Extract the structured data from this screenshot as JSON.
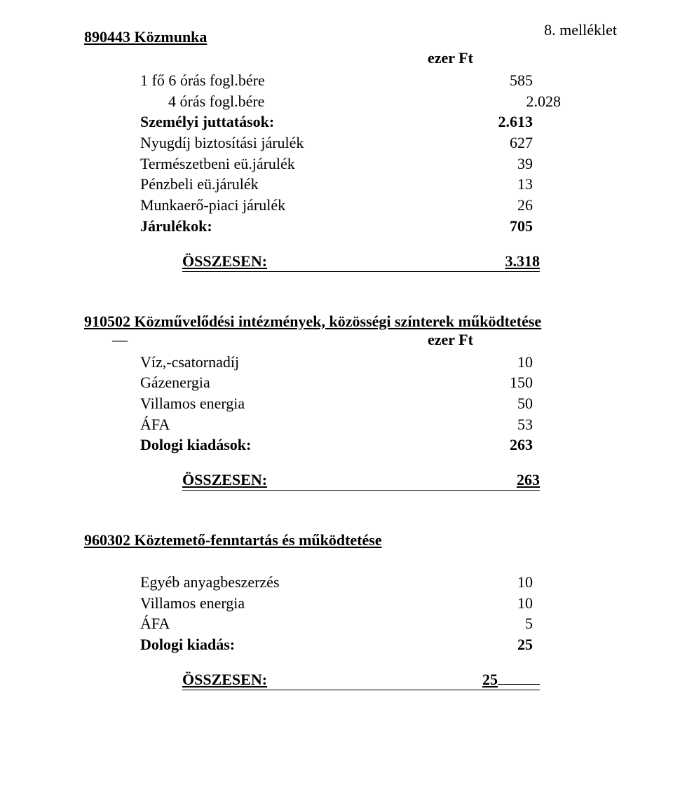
{
  "page": {
    "attachment_label": "8. melléklet"
  },
  "section1": {
    "title": "890443  Közmunka",
    "currency_label": "ezer Ft",
    "rows": [
      {
        "label": "1 fő 6 órás fogl.bére",
        "value": "585"
      },
      {
        "label": "4 órás fogl.bére",
        "value": "2.028"
      },
      {
        "label": "Személyi juttatások:",
        "value": "2.613"
      },
      {
        "label": "Nyugdíj biztosítási járulék",
        "value": "627"
      },
      {
        "label": "Természetbeni eü.járulék",
        "value": "39"
      },
      {
        "label": "Pénzbeli eü.járulék",
        "value": "13"
      },
      {
        "label": "Munkaerő-piaci járulék",
        "value": "26"
      },
      {
        "label": "Járulékok:",
        "value": "705"
      }
    ],
    "total": {
      "label": "ÖSSZESEN:",
      "value": "3.318"
    }
  },
  "section2": {
    "title": "910502 Közművelődési intézmények, közösségi színterek működtetése",
    "currency_label": "ezer Ft",
    "rows": [
      {
        "label": "Víz,-csatornadíj",
        "value": "10"
      },
      {
        "label": "Gázenergia",
        "value": "150"
      },
      {
        "label": "Villamos energia",
        "value": "50"
      },
      {
        "label": "ÁFA",
        "value": "53"
      },
      {
        "label": "Dologi kiadások:",
        "value": "263"
      }
    ],
    "total": {
      "label": "ÖSSZESEN:",
      "value": "263"
    }
  },
  "section3": {
    "title": "960302 Köztemető-fenntartás és működtetése",
    "rows": [
      {
        "label": "Egyéb anyagbeszerzés",
        "value": "10"
      },
      {
        "label": "Villamos energia",
        "value": "10"
      },
      {
        "label": "ÁFA",
        "value": "5"
      },
      {
        "label": "Dologi kiadás:",
        "value": "25"
      }
    ],
    "total": {
      "label": "ÖSSZESEN:",
      "value": "25"
    }
  },
  "style": {
    "font_family": "Times New Roman",
    "base_font_size_pt": 16,
    "text_color": "#000000",
    "background_color": "#ffffff",
    "underline_color": "#000000"
  }
}
